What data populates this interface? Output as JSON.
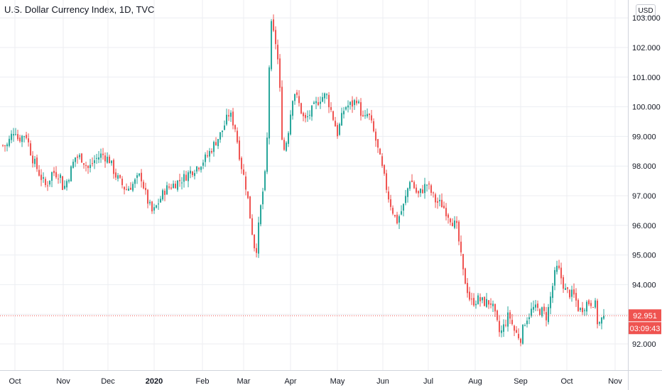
{
  "header": {
    "title": "U.S. Dollar Currency Index, 1D, TVC"
  },
  "currency_button": "USD",
  "colors": {
    "up": "#26a69a",
    "down": "#ef5350",
    "grid": "#eceef2",
    "axis": "#d1d4dc",
    "price_line": "#ef5350"
  },
  "price_label": "92.951",
  "countdown_label": "03:09:43",
  "chart_data": {
    "type": "line",
    "style": "candlestick",
    "x_tick_labels": [
      "Oct",
      "Nov",
      "Dec",
      "2020",
      "Feb",
      "Mar",
      "Apr",
      "May",
      "Jun",
      "Jul",
      "Aug",
      "Sep",
      "Oct",
      "Nov"
    ],
    "y_tick_labels": [
      "92.000",
      "93.000",
      "94.000",
      "95.000",
      "96.000",
      "97.000",
      "98.000",
      "99.000",
      "100.000",
      "101.000",
      "102.000",
      "103.000"
    ],
    "ylim": [
      91.0,
      103.5
    ],
    "grid": true,
    "last_price": 92.951,
    "closes": [
      {
        "date": "2019-09-26",
        "close": 98.7
      },
      {
        "date": "2019-10-01",
        "close": 99.3
      },
      {
        "date": "2019-10-03",
        "close": 98.9
      },
      {
        "date": "2019-10-08",
        "close": 99.1
      },
      {
        "date": "2019-10-12",
        "close": 98.3
      },
      {
        "date": "2019-10-17",
        "close": 97.7
      },
      {
        "date": "2019-10-21",
        "close": 97.3
      },
      {
        "date": "2019-10-25",
        "close": 97.8
      },
      {
        "date": "2019-10-30",
        "close": 97.7
      },
      {
        "date": "2019-11-01",
        "close": 97.2
      },
      {
        "date": "2019-11-05",
        "close": 97.7
      },
      {
        "date": "2019-11-09",
        "close": 98.3
      },
      {
        "date": "2019-11-13",
        "close": 98.3
      },
      {
        "date": "2019-11-18",
        "close": 97.9
      },
      {
        "date": "2019-11-22",
        "close": 98.2
      },
      {
        "date": "2019-11-27",
        "close": 98.4
      },
      {
        "date": "2019-12-02",
        "close": 98.2
      },
      {
        "date": "2019-12-06",
        "close": 97.7
      },
      {
        "date": "2019-12-10",
        "close": 97.4
      },
      {
        "date": "2019-12-13",
        "close": 97.2
      },
      {
        "date": "2019-12-18",
        "close": 97.4
      },
      {
        "date": "2019-12-23",
        "close": 97.7
      },
      {
        "date": "2019-12-27",
        "close": 96.9
      },
      {
        "date": "2019-12-31",
        "close": 96.4
      },
      {
        "date": "2020-01-03",
        "close": 96.7
      },
      {
        "date": "2020-01-08",
        "close": 97.2
      },
      {
        "date": "2020-01-14",
        "close": 97.4
      },
      {
        "date": "2020-01-20",
        "close": 97.6
      },
      {
        "date": "2020-01-24",
        "close": 97.8
      },
      {
        "date": "2020-01-29",
        "close": 98.0
      },
      {
        "date": "2020-02-04",
        "close": 98.3
      },
      {
        "date": "2020-02-10",
        "close": 98.8
      },
      {
        "date": "2020-02-14",
        "close": 99.1
      },
      {
        "date": "2020-02-20",
        "close": 99.8
      },
      {
        "date": "2020-02-24",
        "close": 99.3
      },
      {
        "date": "2020-02-28",
        "close": 98.1
      },
      {
        "date": "2020-03-03",
        "close": 97.2
      },
      {
        "date": "2020-03-06",
        "close": 96.0
      },
      {
        "date": "2020-03-09",
        "close": 95.0
      },
      {
        "date": "2020-03-12",
        "close": 96.5
      },
      {
        "date": "2020-03-16",
        "close": 98.0
      },
      {
        "date": "2020-03-18",
        "close": 101.5
      },
      {
        "date": "2020-03-19",
        "close": 102.8
      },
      {
        "date": "2020-03-23",
        "close": 102.0
      },
      {
        "date": "2020-03-25",
        "close": 100.5
      },
      {
        "date": "2020-03-27",
        "close": 98.4
      },
      {
        "date": "2020-03-30",
        "close": 99.0
      },
      {
        "date": "2020-04-03",
        "close": 100.6
      },
      {
        "date": "2020-04-07",
        "close": 100.0
      },
      {
        "date": "2020-04-10",
        "close": 99.5
      },
      {
        "date": "2020-04-15",
        "close": 99.9
      },
      {
        "date": "2020-04-20",
        "close": 100.3
      },
      {
        "date": "2020-04-24",
        "close": 100.4
      },
      {
        "date": "2020-04-29",
        "close": 99.5
      },
      {
        "date": "2020-05-01",
        "close": 99.1
      },
      {
        "date": "2020-05-06",
        "close": 100.0
      },
      {
        "date": "2020-05-12",
        "close": 100.1
      },
      {
        "date": "2020-05-14",
        "close": 100.3
      },
      {
        "date": "2020-05-19",
        "close": 99.5
      },
      {
        "date": "2020-05-22",
        "close": 99.8
      },
      {
        "date": "2020-05-27",
        "close": 98.9
      },
      {
        "date": "2020-06-01",
        "close": 97.8
      },
      {
        "date": "2020-06-05",
        "close": 96.9
      },
      {
        "date": "2020-06-10",
        "close": 96.1
      },
      {
        "date": "2020-06-15",
        "close": 96.7
      },
      {
        "date": "2020-06-19",
        "close": 97.6
      },
      {
        "date": "2020-06-24",
        "close": 97.0
      },
      {
        "date": "2020-06-30",
        "close": 97.4
      },
      {
        "date": "2020-07-06",
        "close": 96.8
      },
      {
        "date": "2020-07-10",
        "close": 96.7
      },
      {
        "date": "2020-07-15",
        "close": 96.3
      },
      {
        "date": "2020-07-20",
        "close": 95.9
      },
      {
        "date": "2020-07-24",
        "close": 94.4
      },
      {
        "date": "2020-07-29",
        "close": 93.4
      },
      {
        "date": "2020-08-03",
        "close": 93.5
      },
      {
        "date": "2020-08-07",
        "close": 93.4
      },
      {
        "date": "2020-08-12",
        "close": 93.4
      },
      {
        "date": "2020-08-18",
        "close": 92.3
      },
      {
        "date": "2020-08-24",
        "close": 93.0
      },
      {
        "date": "2020-08-28",
        "close": 92.4
      },
      {
        "date": "2020-09-01",
        "close": 92.2
      },
      {
        "date": "2020-09-04",
        "close": 92.8
      },
      {
        "date": "2020-09-09",
        "close": 93.2
      },
      {
        "date": "2020-09-15",
        "close": 93.1
      },
      {
        "date": "2020-09-18",
        "close": 92.9
      },
      {
        "date": "2020-09-23",
        "close": 94.3
      },
      {
        "date": "2020-09-25",
        "close": 94.6
      },
      {
        "date": "2020-09-30",
        "close": 93.8
      },
      {
        "date": "2020-10-06",
        "close": 93.6
      },
      {
        "date": "2020-10-09",
        "close": 93.1
      },
      {
        "date": "2020-10-14",
        "close": 93.4
      },
      {
        "date": "2020-10-19",
        "close": 93.4
      },
      {
        "date": "2020-10-21",
        "close": 92.6
      },
      {
        "date": "2020-10-23",
        "close": 92.8
      },
      {
        "date": "2020-10-26",
        "close": 92.95
      }
    ]
  }
}
